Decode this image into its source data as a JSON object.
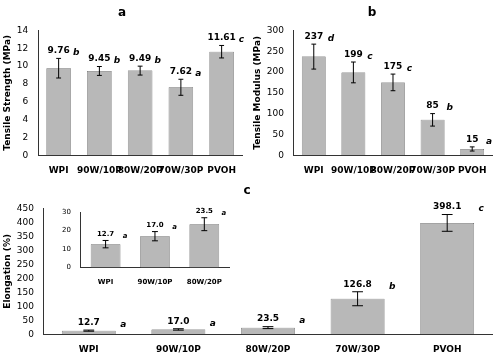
{
  "chart_data": [
    {
      "type": "bar",
      "title": "a",
      "categories": [
        "WPI",
        "90W/10P",
        "80W/20P",
        "70W/30P",
        "PVOH"
      ],
      "values": [
        9.76,
        9.45,
        9.49,
        7.62,
        11.61
      ],
      "errors": [
        1.1,
        0.5,
        0.5,
        0.9,
        0.7
      ],
      "letters": [
        "b",
        "b",
        "b",
        "a",
        "c"
      ],
      "ylabel": "Tensile Strength (MPa)",
      "ylim": [
        0,
        14
      ],
      "yticks": [
        0,
        2,
        4,
        6,
        8,
        10,
        12,
        14
      ],
      "color": "#b8b8b8",
      "grid": false,
      "data_labels": true
    },
    {
      "type": "bar",
      "title": "b",
      "categories": [
        "WPI",
        "90W/10P",
        "80W/20P",
        "70W/30P",
        "PVOH"
      ],
      "values": [
        237,
        199,
        175,
        85,
        15
      ],
      "errors": [
        30,
        25,
        20,
        15,
        5
      ],
      "letters": [
        "d",
        "c",
        "c",
        "b",
        "a"
      ],
      "ylabel": "Tensile Modulus (MPa)",
      "ylim": [
        0,
        300
      ],
      "yticks": [
        0,
        50,
        100,
        150,
        200,
        250,
        300
      ],
      "color": "#b8b8b8",
      "grid": false,
      "data_labels": true
    },
    {
      "type": "bar",
      "title": "c",
      "categories": [
        "WPI",
        "90W/10P",
        "80W/20P",
        "70W/30P",
        "PVOH"
      ],
      "values": [
        12.7,
        17.0,
        23.5,
        126.8,
        398.1
      ],
      "value_labels": [
        "12.7",
        "17.0",
        "23.5",
        "126.8",
        "398.1"
      ],
      "errors": [
        2.0,
        2.5,
        3.5,
        25.0,
        30.0
      ],
      "letters": [
        "a",
        "a",
        "a",
        "b",
        "c"
      ],
      "ylabel": "Elongation (%)",
      "ylim": [
        0,
        450
      ],
      "yticks": [
        0,
        50,
        100,
        150,
        200,
        250,
        300,
        350,
        400,
        450
      ],
      "color": "#b8b8b8",
      "grid": false,
      "data_labels": true
    },
    {
      "type": "bar",
      "categories": [
        "WPI",
        "90W/10P",
        "80W/20P"
      ],
      "values": [
        12.7,
        17.0,
        23.5
      ],
      "value_labels": [
        "12.7",
        "17.0",
        "23.5"
      ],
      "errors": [
        2.0,
        2.5,
        3.5
      ],
      "letters": [
        "a",
        "a",
        "a"
      ],
      "ylim": [
        0,
        30
      ],
      "yticks": [
        0,
        10,
        20,
        30
      ],
      "color": "#b8b8b8",
      "grid": false,
      "data_labels": true
    }
  ]
}
